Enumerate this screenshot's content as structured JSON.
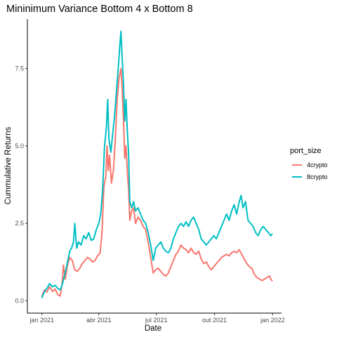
{
  "chart_data": {
    "type": "line",
    "title": "Mininimum Variance  Bottom 4 x Bottom 8",
    "xlabel": "Date",
    "ylabel": "Cummulative Returns",
    "x_ticks": [
      "jan 2021",
      "abr 2021",
      "jul 2021",
      "out 2021",
      "jan 2022"
    ],
    "x_tick_dates": [
      "2021-01-01",
      "2021-04-01",
      "2021-07-01",
      "2021-10-01",
      "2022-01-01"
    ],
    "xlim": [
      "2020-12-09",
      "2022-01-15"
    ],
    "y_ticks": [
      "0.0",
      "2.5",
      "5.0",
      "7.5"
    ],
    "y_tick_values": [
      0,
      2.5,
      5,
      7.5
    ],
    "ylim": [
      -0.4,
      9.1
    ],
    "grid": false,
    "legend": {
      "title": "port_size",
      "position": "right"
    },
    "series": [
      {
        "name": "4crypto",
        "color": "#F8766D",
        "points": [
          [
            "2021-01-01",
            0.15
          ],
          [
            "2021-01-05",
            0.35
          ],
          [
            "2021-01-09",
            0.28
          ],
          [
            "2021-01-13",
            0.45
          ],
          [
            "2021-01-18",
            0.3
          ],
          [
            "2021-01-22",
            0.38
          ],
          [
            "2021-01-26",
            0.2
          ],
          [
            "2021-01-30",
            0.15
          ],
          [
            "2021-02-02",
            0.55
          ],
          [
            "2021-02-04",
            1.15
          ],
          [
            "2021-02-07",
            0.7
          ],
          [
            "2021-02-10",
            1.1
          ],
          [
            "2021-02-14",
            1.4
          ],
          [
            "2021-02-18",
            1.3
          ],
          [
            "2021-02-22",
            1.0
          ],
          [
            "2021-02-26",
            0.95
          ],
          [
            "2021-03-02",
            1.05
          ],
          [
            "2021-03-06",
            1.2
          ],
          [
            "2021-03-10",
            1.3
          ],
          [
            "2021-03-14",
            1.4
          ],
          [
            "2021-03-18",
            1.35
          ],
          [
            "2021-03-22",
            1.25
          ],
          [
            "2021-03-26",
            1.3
          ],
          [
            "2021-03-30",
            1.45
          ],
          [
            "2021-04-03",
            1.55
          ],
          [
            "2021-04-06",
            2.2
          ],
          [
            "2021-04-09",
            3.7
          ],
          [
            "2021-04-12",
            4.0
          ],
          [
            "2021-04-14",
            5.0
          ],
          [
            "2021-04-16",
            4.2
          ],
          [
            "2021-04-18",
            4.7
          ],
          [
            "2021-04-21",
            3.8
          ],
          [
            "2021-04-24",
            4.2
          ],
          [
            "2021-04-27",
            5.2
          ],
          [
            "2021-04-30",
            6.5
          ],
          [
            "2021-05-03",
            7.2
          ],
          [
            "2021-05-06",
            7.5
          ],
          [
            "2021-05-08",
            6.8
          ],
          [
            "2021-05-10",
            5.8
          ],
          [
            "2021-05-12",
            4.6
          ],
          [
            "2021-05-14",
            5.0
          ],
          [
            "2021-05-16",
            4.2
          ],
          [
            "2021-05-18",
            3.6
          ],
          [
            "2021-05-20",
            2.6
          ],
          [
            "2021-05-23",
            2.9
          ],
          [
            "2021-05-26",
            3.0
          ],
          [
            "2021-05-29",
            2.5
          ],
          [
            "2021-06-02",
            2.7
          ],
          [
            "2021-06-06",
            2.6
          ],
          [
            "2021-06-10",
            2.4
          ],
          [
            "2021-06-14",
            2.3
          ],
          [
            "2021-06-18",
            1.9
          ],
          [
            "2021-06-22",
            1.4
          ],
          [
            "2021-06-26",
            0.9
          ],
          [
            "2021-06-30",
            1.0
          ],
          [
            "2021-07-04",
            1.05
          ],
          [
            "2021-07-08",
            0.95
          ],
          [
            "2021-07-12",
            0.85
          ],
          [
            "2021-07-16",
            0.8
          ],
          [
            "2021-07-20",
            0.9
          ],
          [
            "2021-07-24",
            1.1
          ],
          [
            "2021-07-28",
            1.3
          ],
          [
            "2021-08-01",
            1.5
          ],
          [
            "2021-08-05",
            1.6
          ],
          [
            "2021-08-09",
            1.8
          ],
          [
            "2021-08-13",
            1.7
          ],
          [
            "2021-08-17",
            1.65
          ],
          [
            "2021-08-21",
            1.55
          ],
          [
            "2021-08-25",
            1.7
          ],
          [
            "2021-08-29",
            1.55
          ],
          [
            "2021-09-02",
            1.5
          ],
          [
            "2021-09-06",
            1.6
          ],
          [
            "2021-09-10",
            1.35
          ],
          [
            "2021-09-14",
            1.2
          ],
          [
            "2021-09-18",
            1.25
          ],
          [
            "2021-09-22",
            1.1
          ],
          [
            "2021-09-26",
            1.0
          ],
          [
            "2021-09-30",
            1.1
          ],
          [
            "2021-10-04",
            1.2
          ],
          [
            "2021-10-08",
            1.3
          ],
          [
            "2021-10-12",
            1.4
          ],
          [
            "2021-10-16",
            1.45
          ],
          [
            "2021-10-20",
            1.5
          ],
          [
            "2021-10-24",
            1.45
          ],
          [
            "2021-10-28",
            1.55
          ],
          [
            "2021-11-01",
            1.6
          ],
          [
            "2021-11-05",
            1.55
          ],
          [
            "2021-11-09",
            1.65
          ],
          [
            "2021-11-13",
            1.5
          ],
          [
            "2021-11-17",
            1.35
          ],
          [
            "2021-11-21",
            1.2
          ],
          [
            "2021-11-25",
            1.1
          ],
          [
            "2021-11-29",
            1.05
          ],
          [
            "2021-12-03",
            0.85
          ],
          [
            "2021-12-07",
            0.75
          ],
          [
            "2021-12-11",
            0.7
          ],
          [
            "2021-12-15",
            0.65
          ],
          [
            "2021-12-19",
            0.7
          ],
          [
            "2021-12-23",
            0.75
          ],
          [
            "2021-12-27",
            0.8
          ],
          [
            "2021-12-29",
            0.7
          ],
          [
            "2021-12-31",
            0.65
          ]
        ]
      },
      {
        "name": "8crypto",
        "color": "#00BFC4",
        "points": [
          [
            "2021-01-01",
            0.1
          ],
          [
            "2021-01-05",
            0.3
          ],
          [
            "2021-01-09",
            0.4
          ],
          [
            "2021-01-13",
            0.55
          ],
          [
            "2021-01-18",
            0.45
          ],
          [
            "2021-01-22",
            0.5
          ],
          [
            "2021-01-26",
            0.4
          ],
          [
            "2021-01-30",
            0.35
          ],
          [
            "2021-02-02",
            0.5
          ],
          [
            "2021-02-05",
            0.75
          ],
          [
            "2021-02-08",
            1.0
          ],
          [
            "2021-02-11",
            1.3
          ],
          [
            "2021-02-14",
            1.6
          ],
          [
            "2021-02-17",
            1.7
          ],
          [
            "2021-02-20",
            1.9
          ],
          [
            "2021-02-22",
            2.5
          ],
          [
            "2021-02-25",
            1.7
          ],
          [
            "2021-02-28",
            1.9
          ],
          [
            "2021-03-04",
            1.8
          ],
          [
            "2021-03-08",
            2.1
          ],
          [
            "2021-03-12",
            2.0
          ],
          [
            "2021-03-16",
            2.2
          ],
          [
            "2021-03-20",
            1.95
          ],
          [
            "2021-03-24",
            2.0
          ],
          [
            "2021-03-28",
            2.3
          ],
          [
            "2021-04-01",
            2.5
          ],
          [
            "2021-04-04",
            2.8
          ],
          [
            "2021-04-07",
            3.6
          ],
          [
            "2021-04-10",
            5.0
          ],
          [
            "2021-04-13",
            5.6
          ],
          [
            "2021-04-15",
            6.5
          ],
          [
            "2021-04-17",
            5.2
          ],
          [
            "2021-04-20",
            4.8
          ],
          [
            "2021-04-23",
            5.4
          ],
          [
            "2021-04-26",
            6.0
          ],
          [
            "2021-04-29",
            6.8
          ],
          [
            "2021-05-02",
            7.6
          ],
          [
            "2021-05-04",
            8.2
          ],
          [
            "2021-05-06",
            8.7
          ],
          [
            "2021-05-08",
            7.8
          ],
          [
            "2021-05-10",
            7.0
          ],
          [
            "2021-05-12",
            5.8
          ],
          [
            "2021-05-14",
            6.5
          ],
          [
            "2021-05-16",
            5.5
          ],
          [
            "2021-05-18",
            4.8
          ],
          [
            "2021-05-20",
            3.2
          ],
          [
            "2021-05-23",
            3.0
          ],
          [
            "2021-05-26",
            3.2
          ],
          [
            "2021-05-29",
            2.9
          ],
          [
            "2021-06-02",
            3.0
          ],
          [
            "2021-06-06",
            2.8
          ],
          [
            "2021-06-10",
            2.6
          ],
          [
            "2021-06-14",
            2.5
          ],
          [
            "2021-06-18",
            2.2
          ],
          [
            "2021-06-22",
            1.8
          ],
          [
            "2021-06-26",
            1.3
          ],
          [
            "2021-06-30",
            1.7
          ],
          [
            "2021-07-04",
            1.8
          ],
          [
            "2021-07-08",
            1.9
          ],
          [
            "2021-07-12",
            1.7
          ],
          [
            "2021-07-16",
            1.6
          ],
          [
            "2021-07-20",
            1.55
          ],
          [
            "2021-07-24",
            1.7
          ],
          [
            "2021-07-28",
            2.0
          ],
          [
            "2021-08-01",
            2.2
          ],
          [
            "2021-08-05",
            2.4
          ],
          [
            "2021-08-09",
            2.5
          ],
          [
            "2021-08-13",
            2.4
          ],
          [
            "2021-08-17",
            2.55
          ],
          [
            "2021-08-21",
            2.4
          ],
          [
            "2021-08-25",
            2.6
          ],
          [
            "2021-08-29",
            2.7
          ],
          [
            "2021-09-02",
            2.5
          ],
          [
            "2021-09-06",
            2.3
          ],
          [
            "2021-09-10",
            2.0
          ],
          [
            "2021-09-14",
            1.9
          ],
          [
            "2021-09-18",
            1.8
          ],
          [
            "2021-09-22",
            1.9
          ],
          [
            "2021-09-26",
            2.0
          ],
          [
            "2021-09-30",
            2.1
          ],
          [
            "2021-10-04",
            2.0
          ],
          [
            "2021-10-08",
            2.2
          ],
          [
            "2021-10-12",
            2.4
          ],
          [
            "2021-10-16",
            2.6
          ],
          [
            "2021-10-20",
            2.8
          ],
          [
            "2021-10-24",
            2.6
          ],
          [
            "2021-10-28",
            2.9
          ],
          [
            "2021-11-01",
            3.1
          ],
          [
            "2021-11-05",
            2.8
          ],
          [
            "2021-11-09",
            3.2
          ],
          [
            "2021-11-12",
            3.4
          ],
          [
            "2021-11-15",
            3.0
          ],
          [
            "2021-11-19",
            3.2
          ],
          [
            "2021-11-23",
            2.6
          ],
          [
            "2021-11-27",
            2.5
          ],
          [
            "2021-12-01",
            2.4
          ],
          [
            "2021-12-05",
            2.2
          ],
          [
            "2021-12-09",
            2.1
          ],
          [
            "2021-12-13",
            2.3
          ],
          [
            "2021-12-17",
            2.4
          ],
          [
            "2021-12-21",
            2.3
          ],
          [
            "2021-12-25",
            2.2
          ],
          [
            "2021-12-29",
            2.1
          ],
          [
            "2021-12-31",
            2.15
          ]
        ]
      }
    ]
  }
}
